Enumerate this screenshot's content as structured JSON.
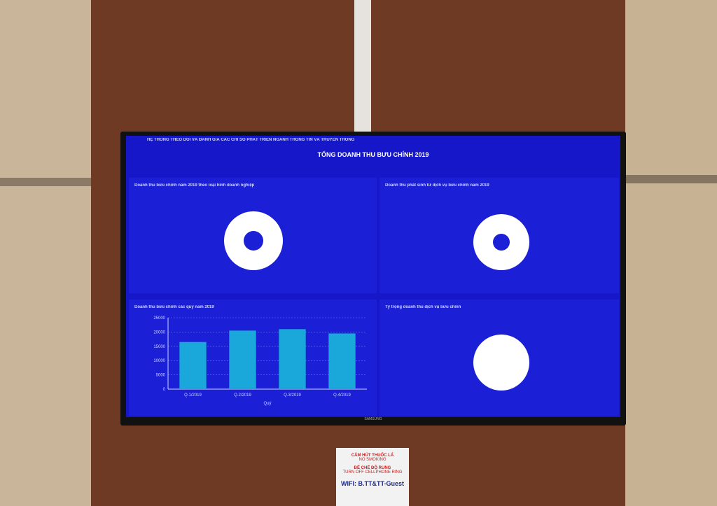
{
  "screen": {
    "header": "HỆ THỐNG THEO DÕI VÀ ĐÁNH GIÁ CÁC CHỈ SỐ PHÁT TRIỂN NGÀNH THÔNG TIN VÀ TRUYỀN THÔNG",
    "title": "TỔNG DOANH THU BƯU CHÍNH 2019",
    "panels": [
      {
        "title": "Doanh thu bưu chính năm 2019 theo loại hình doanh nghiệp"
      },
      {
        "title": "Doanh thu phát sinh từ dịch vụ bưu chính năm 2019"
      },
      {
        "title": "Doanh thu bưu chính các quý năm 2019"
      },
      {
        "title": "Tỷ trọng doanh thu dịch vụ bưu chính"
      }
    ],
    "bar_chart": {
      "type": "bar",
      "categories": [
        "Q.1/2019",
        "Q.2/2019",
        "Q.3/2019",
        "Q.4/2019"
      ],
      "values": [
        16500,
        20500,
        21000,
        19500
      ],
      "ylim": [
        0,
        25000
      ],
      "yticks": [
        0,
        5000,
        10000,
        15000,
        20000,
        25000
      ],
      "xlabel": "Quý",
      "color": "#1aa7d9"
    },
    "brand": "SAMSUNG",
    "sign": [
      "CẤM HÚT THUỐC LÁ",
      "NO SMOKING",
      "ĐỂ CHẾ ĐỘ RUNG",
      "TURN OFF CELLPHONE RING",
      "WIFI: B.TT&TT-Guest"
    ]
  }
}
